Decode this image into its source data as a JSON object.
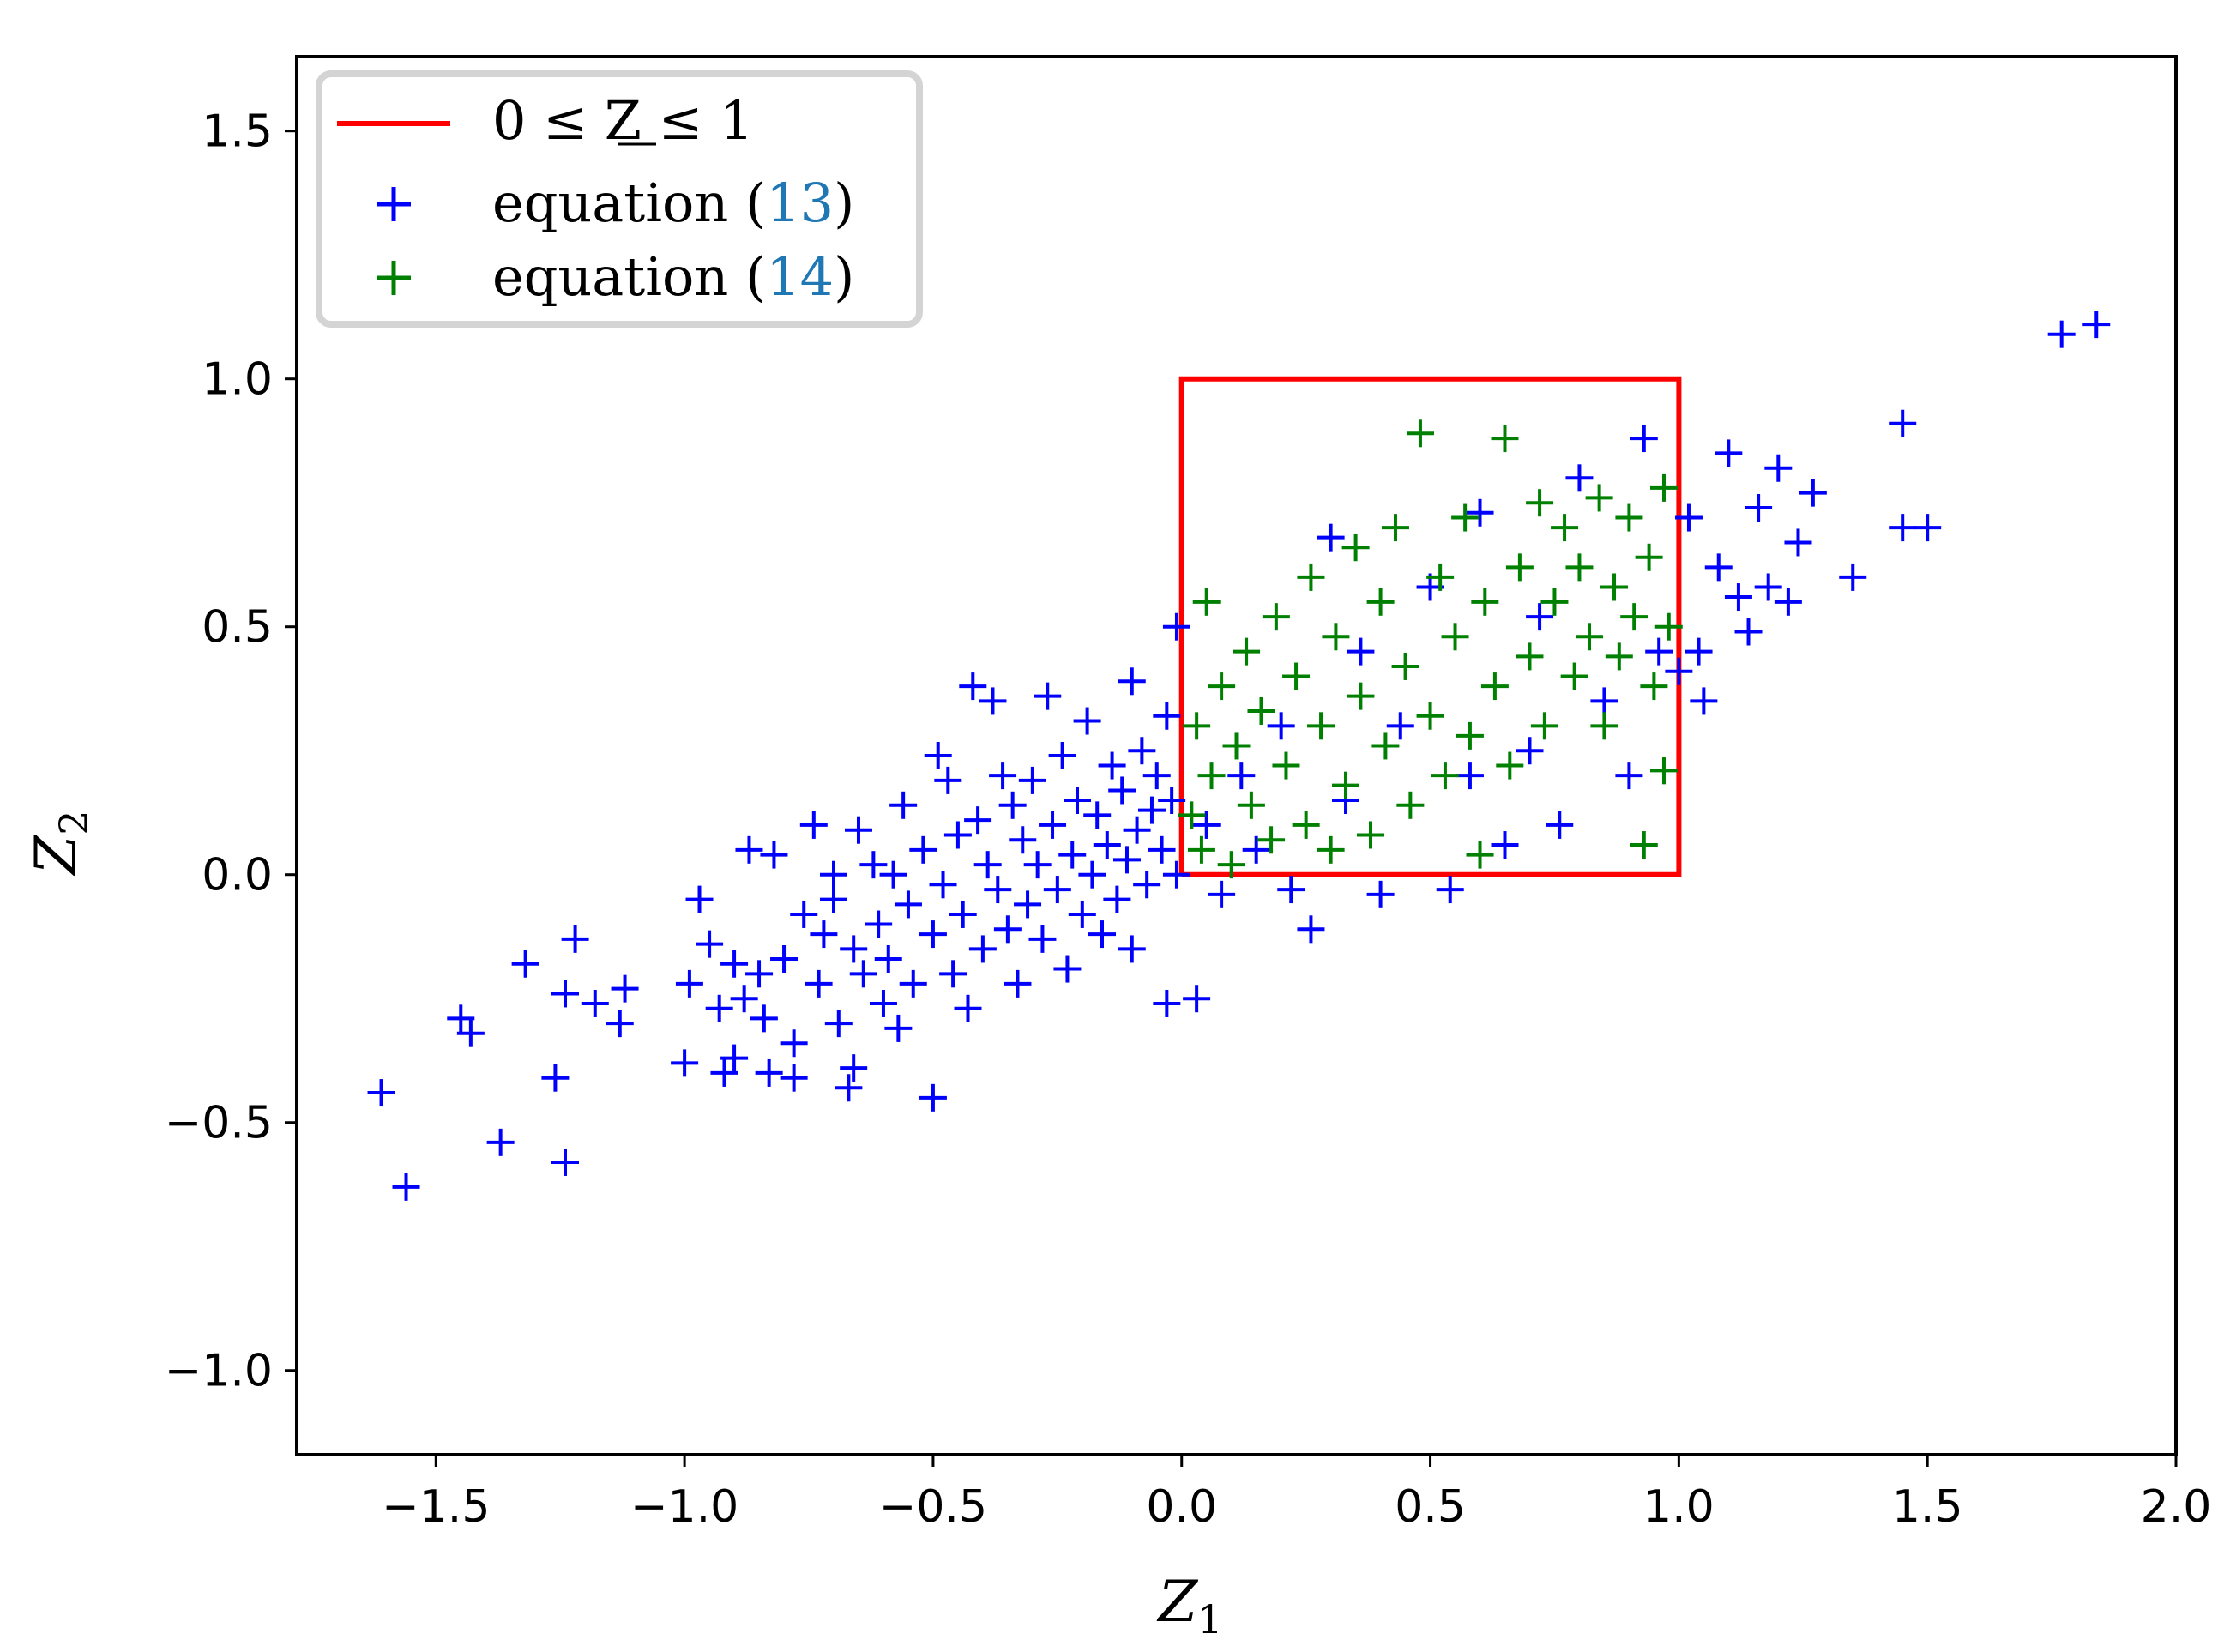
{
  "chart_data": {
    "type": "scatter",
    "xlabel": "Z",
    "xlabel_sub": "1",
    "ylabel": "Z",
    "ylabel_sub": "2",
    "xlim": [
      -1.78,
      2.0
    ],
    "ylim": [
      -1.17,
      1.65
    ],
    "xticks": [
      -1.5,
      -1.0,
      -0.5,
      0.0,
      0.5,
      1.0,
      1.5,
      2.0
    ],
    "xtick_labels": [
      "−1.5",
      "−1.0",
      "−0.5",
      "0.0",
      "0.5",
      "1.0",
      "1.5",
      "2.0"
    ],
    "yticks": [
      -1.0,
      -0.5,
      0.0,
      0.5,
      1.0,
      1.5
    ],
    "ytick_labels": [
      "−1.0",
      "−0.5",
      "0.0",
      "0.5",
      "1.0",
      "1.5"
    ],
    "grid": false,
    "legend_position": "top-left",
    "legend": {
      "entries": [
        {
          "marker": "line",
          "color": "#ff0000",
          "label": "0 ≤ Z ≤ 1",
          "label_prefix": "",
          "label_ref": "",
          "label_suffix": ""
        },
        {
          "marker": "plus",
          "color": "#0000ff",
          "label": "",
          "label_prefix": "equation (",
          "label_ref": "13",
          "label_suffix": ")"
        },
        {
          "marker": "plus",
          "color": "#008000",
          "label": "",
          "label_prefix": "equation (",
          "label_ref": "14",
          "label_suffix": ")"
        }
      ]
    },
    "box": {
      "x": [
        0,
        0,
        1,
        1,
        0
      ],
      "y": [
        0,
        1,
        1,
        0,
        0
      ],
      "color": "#ff0000"
    },
    "series": [
      {
        "color": "#0000ff",
        "marker": "plus",
        "points": [
          [
            -1.61,
            -0.44
          ],
          [
            -1.56,
            -0.63
          ],
          [
            -1.45,
            -0.29
          ],
          [
            -1.43,
            -0.32
          ],
          [
            -1.37,
            -0.54
          ],
          [
            -1.32,
            -0.18
          ],
          [
            -1.26,
            -0.41
          ],
          [
            -1.24,
            -0.58
          ],
          [
            -1.24,
            -0.24
          ],
          [
            -1.22,
            -0.13
          ],
          [
            -1.18,
            -0.26
          ],
          [
            -1.13,
            -0.3
          ],
          [
            -1.12,
            -0.23
          ],
          [
            -1.0,
            -0.38
          ],
          [
            -0.99,
            -0.22
          ],
          [
            -0.97,
            -0.05
          ],
          [
            -0.95,
            -0.14
          ],
          [
            -0.93,
            -0.27
          ],
          [
            -0.92,
            -0.4
          ],
          [
            -0.9,
            -0.37
          ],
          [
            -0.9,
            -0.18
          ],
          [
            -0.88,
            -0.25
          ],
          [
            -0.87,
            0.05
          ],
          [
            -0.85,
            -0.2
          ],
          [
            -0.84,
            -0.29
          ],
          [
            -0.83,
            -0.4
          ],
          [
            -0.82,
            0.04
          ],
          [
            -0.8,
            -0.17
          ],
          [
            -0.78,
            -0.34
          ],
          [
            -0.78,
            -0.41
          ],
          [
            -0.76,
            -0.08
          ],
          [
            -0.74,
            0.1
          ],
          [
            -0.73,
            -0.22
          ],
          [
            -0.72,
            -0.12
          ],
          [
            -0.7,
            -0.05
          ],
          [
            -0.7,
            0.0
          ],
          [
            -0.69,
            -0.3
          ],
          [
            -0.67,
            -0.43
          ],
          [
            -0.66,
            -0.15
          ],
          [
            -0.66,
            -0.39
          ],
          [
            -0.65,
            0.09
          ],
          [
            -0.64,
            -0.2
          ],
          [
            -0.62,
            0.02
          ],
          [
            -0.61,
            -0.1
          ],
          [
            -0.6,
            -0.26
          ],
          [
            -0.59,
            -0.17
          ],
          [
            -0.58,
            0.0
          ],
          [
            -0.57,
            -0.31
          ],
          [
            -0.56,
            0.14
          ],
          [
            -0.55,
            -0.06
          ],
          [
            -0.54,
            -0.22
          ],
          [
            -0.52,
            0.05
          ],
          [
            -0.5,
            -0.45
          ],
          [
            -0.5,
            -0.12
          ],
          [
            -0.49,
            0.24
          ],
          [
            -0.48,
            -0.02
          ],
          [
            -0.47,
            0.19
          ],
          [
            -0.46,
            -0.2
          ],
          [
            -0.45,
            0.08
          ],
          [
            -0.44,
            -0.08
          ],
          [
            -0.43,
            -0.27
          ],
          [
            -0.42,
            0.38
          ],
          [
            -0.41,
            0.11
          ],
          [
            -0.4,
            -0.15
          ],
          [
            -0.39,
            0.02
          ],
          [
            -0.38,
            0.35
          ],
          [
            -0.37,
            -0.03
          ],
          [
            -0.36,
            0.2
          ],
          [
            -0.35,
            -0.11
          ],
          [
            -0.34,
            0.14
          ],
          [
            -0.33,
            -0.22
          ],
          [
            -0.32,
            0.07
          ],
          [
            -0.31,
            -0.06
          ],
          [
            -0.3,
            0.19
          ],
          [
            -0.29,
            0.02
          ],
          [
            -0.28,
            -0.13
          ],
          [
            -0.27,
            0.36
          ],
          [
            -0.26,
            0.1
          ],
          [
            -0.25,
            -0.03
          ],
          [
            -0.24,
            0.24
          ],
          [
            -0.23,
            -0.19
          ],
          [
            -0.22,
            0.04
          ],
          [
            -0.21,
            0.15
          ],
          [
            -0.2,
            -0.08
          ],
          [
            -0.19,
            0.31
          ],
          [
            -0.18,
            0.0
          ],
          [
            -0.17,
            0.12
          ],
          [
            -0.16,
            -0.12
          ],
          [
            -0.15,
            0.06
          ],
          [
            -0.14,
            0.22
          ],
          [
            -0.13,
            -0.05
          ],
          [
            -0.12,
            0.17
          ],
          [
            -0.11,
            0.03
          ],
          [
            -0.1,
            0.39
          ],
          [
            -0.1,
            -0.15
          ],
          [
            -0.09,
            0.09
          ],
          [
            -0.08,
            0.25
          ],
          [
            -0.07,
            -0.02
          ],
          [
            -0.06,
            0.13
          ],
          [
            -0.05,
            0.2
          ],
          [
            -0.04,
            0.05
          ],
          [
            -0.03,
            0.32
          ],
          [
            -0.03,
            -0.26
          ],
          [
            -0.02,
            0.15
          ],
          [
            -0.01,
            0.0
          ],
          [
            -0.01,
            0.5
          ],
          [
            0.03,
            -0.25
          ],
          [
            0.05,
            0.1
          ],
          [
            0.08,
            -0.04
          ],
          [
            0.12,
            0.2
          ],
          [
            0.15,
            0.05
          ],
          [
            0.2,
            0.3
          ],
          [
            0.22,
            -0.03
          ],
          [
            0.26,
            -0.11
          ],
          [
            0.3,
            0.68
          ],
          [
            0.33,
            0.15
          ],
          [
            0.36,
            0.45
          ],
          [
            0.4,
            -0.04
          ],
          [
            0.44,
            0.3
          ],
          [
            0.5,
            0.58
          ],
          [
            0.54,
            -0.03
          ],
          [
            0.58,
            0.2
          ],
          [
            0.6,
            0.73
          ],
          [
            0.65,
            0.06
          ],
          [
            0.7,
            0.25
          ],
          [
            0.72,
            0.52
          ],
          [
            0.76,
            0.1
          ],
          [
            0.8,
            0.8
          ],
          [
            0.85,
            0.35
          ],
          [
            0.9,
            0.2
          ],
          [
            0.93,
            0.88
          ],
          [
            0.96,
            0.45
          ],
          [
            1.0,
            0.41
          ],
          [
            1.02,
            0.72
          ],
          [
            1.04,
            0.45
          ],
          [
            1.05,
            0.35
          ],
          [
            1.08,
            0.62
          ],
          [
            1.1,
            0.85
          ],
          [
            1.12,
            0.56
          ],
          [
            1.14,
            0.49
          ],
          [
            1.16,
            0.74
          ],
          [
            1.18,
            0.58
          ],
          [
            1.2,
            0.82
          ],
          [
            1.22,
            0.55
          ],
          [
            1.24,
            0.67
          ],
          [
            1.27,
            0.77
          ],
          [
            1.35,
            0.6
          ],
          [
            1.45,
            0.91
          ],
          [
            1.45,
            0.7
          ],
          [
            1.5,
            0.7
          ],
          [
            1.77,
            1.09
          ],
          [
            1.84,
            1.11
          ]
        ]
      },
      {
        "color": "#008000",
        "marker": "plus",
        "points": [
          [
            0.02,
            0.12
          ],
          [
            0.03,
            0.3
          ],
          [
            0.04,
            0.05
          ],
          [
            0.05,
            0.55
          ],
          [
            0.06,
            0.2
          ],
          [
            0.08,
            0.38
          ],
          [
            0.1,
            0.02
          ],
          [
            0.11,
            0.26
          ],
          [
            0.13,
            0.45
          ],
          [
            0.14,
            0.14
          ],
          [
            0.16,
            0.33
          ],
          [
            0.18,
            0.07
          ],
          [
            0.19,
            0.52
          ],
          [
            0.21,
            0.22
          ],
          [
            0.23,
            0.4
          ],
          [
            0.25,
            0.1
          ],
          [
            0.26,
            0.6
          ],
          [
            0.28,
            0.3
          ],
          [
            0.3,
            0.05
          ],
          [
            0.31,
            0.48
          ],
          [
            0.33,
            0.18
          ],
          [
            0.35,
            0.66
          ],
          [
            0.36,
            0.36
          ],
          [
            0.38,
            0.08
          ],
          [
            0.4,
            0.55
          ],
          [
            0.41,
            0.26
          ],
          [
            0.43,
            0.7
          ],
          [
            0.45,
            0.42
          ],
          [
            0.46,
            0.14
          ],
          [
            0.48,
            0.89
          ],
          [
            0.5,
            0.32
          ],
          [
            0.52,
            0.6
          ],
          [
            0.53,
            0.2
          ],
          [
            0.55,
            0.48
          ],
          [
            0.57,
            0.72
          ],
          [
            0.58,
            0.28
          ],
          [
            0.6,
            0.04
          ],
          [
            0.61,
            0.55
          ],
          [
            0.63,
            0.38
          ],
          [
            0.65,
            0.88
          ],
          [
            0.66,
            0.22
          ],
          [
            0.68,
            0.62
          ],
          [
            0.7,
            0.44
          ],
          [
            0.72,
            0.75
          ],
          [
            0.73,
            0.3
          ],
          [
            0.75,
            0.55
          ],
          [
            0.77,
            0.7
          ],
          [
            0.79,
            0.4
          ],
          [
            0.8,
            0.62
          ],
          [
            0.82,
            0.48
          ],
          [
            0.84,
            0.76
          ],
          [
            0.85,
            0.3
          ],
          [
            0.87,
            0.58
          ],
          [
            0.88,
            0.44
          ],
          [
            0.9,
            0.72
          ],
          [
            0.91,
            0.52
          ],
          [
            0.93,
            0.06
          ],
          [
            0.94,
            0.64
          ],
          [
            0.95,
            0.38
          ],
          [
            0.97,
            0.21
          ],
          [
            0.97,
            0.78
          ],
          [
            0.98,
            0.5
          ]
        ]
      }
    ]
  }
}
